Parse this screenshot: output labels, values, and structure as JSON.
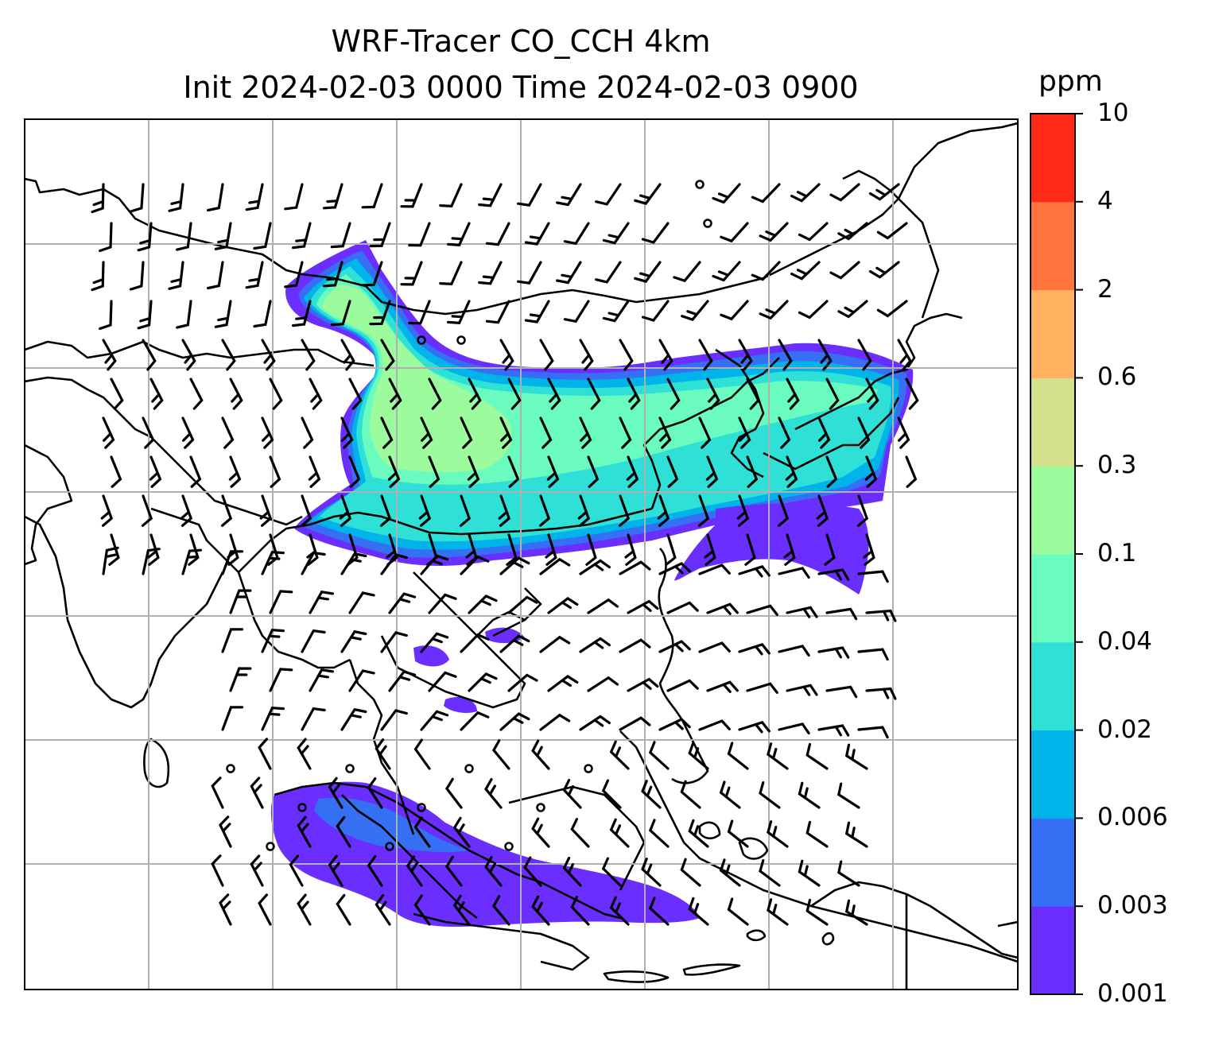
{
  "title": {
    "line1": "WRF-Tracer CO_CCH 4km",
    "line2": "Init 2024-02-03 0000 Time 2024-02-03 0900"
  },
  "colorbar": {
    "unit": "ppm",
    "levels": [
      "0.001",
      "0.003",
      "0.006",
      "0.02",
      "0.04",
      "0.1",
      "0.3",
      "0.6",
      "2",
      "4",
      "10"
    ],
    "colors": [
      "#6a2eff",
      "#3570f4",
      "#00b4ea",
      "#2ee0d6",
      "#6afcbe",
      "#9cfb9c",
      "#d4e18a",
      "#ffb160",
      "#ff743c",
      "#ff2a1a"
    ]
  },
  "map": {
    "grid_color": "#b0b0b0",
    "coastline_color": "#000000",
    "wind_barbs": "black barbs and calm circles"
  }
}
